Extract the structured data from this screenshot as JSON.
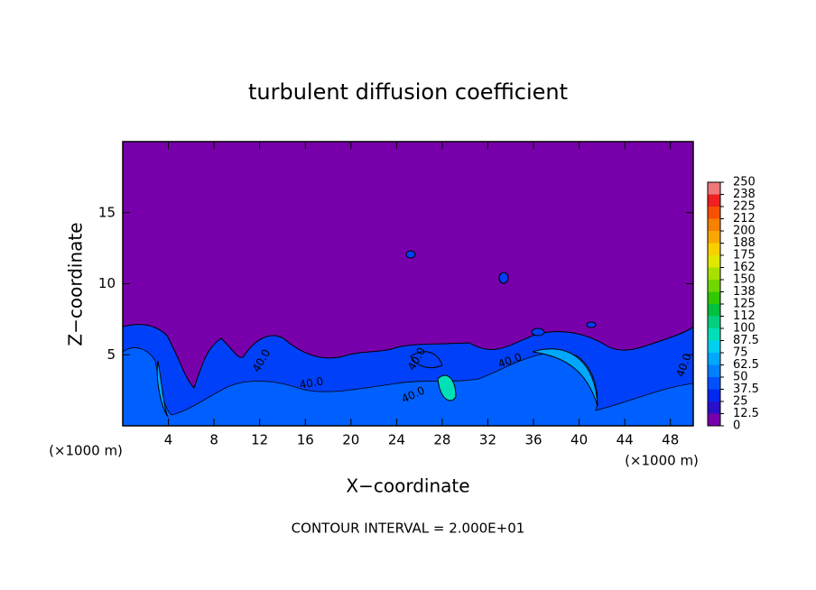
{
  "chart_data": {
    "type": "contour",
    "title": "turbulent diffusion coefficient",
    "xlabel": "X−coordinate",
    "ylabel": "Z−coordinate",
    "x_unit_left": "(×1000 m)",
    "x_unit_right": "(×1000 m)",
    "footer": "CONTOUR INTERVAL = 2.000E+01",
    "xlim": [
      0,
      50
    ],
    "xticks": [
      4,
      8,
      12,
      16,
      20,
      24,
      28,
      32,
      36,
      40,
      44,
      48
    ],
    "ylim": [
      0,
      20
    ],
    "yticks": [
      5,
      10,
      15
    ],
    "colorbar": {
      "lim": [
        0,
        250
      ],
      "ticks": [
        0,
        12.5,
        25,
        37.5,
        50,
        62.5,
        75,
        87.5,
        100,
        {
          "value": 112.5,
          "label": "112"
        },
        125,
        {
          "value": 137.5,
          "label": "138"
        },
        150,
        {
          "value": 162.5,
          "label": "162"
        },
        175,
        {
          "value": 187.5,
          "label": "188"
        },
        200,
        {
          "value": 212.5,
          "label": "212"
        },
        225,
        {
          "value": 237.5,
          "label": "238"
        },
        250
      ],
      "colors": [
        "#7800aa",
        "#2a10c8",
        "#0028f0",
        "#0050ff",
        "#0080ff",
        "#00a8ff",
        "#00d0f0",
        "#00e0b8",
        "#00d080",
        "#00c040",
        "#30c800",
        "#70d800",
        "#a8e000",
        "#e0e800",
        "#f8d000",
        "#f8a800",
        "#f88000",
        "#f85000",
        "#f02020",
        "#f07878"
      ]
    },
    "contour_labels": [
      "40.0",
      "40.0",
      "40.0",
      "40.0",
      "40.0",
      "40.0"
    ]
  }
}
